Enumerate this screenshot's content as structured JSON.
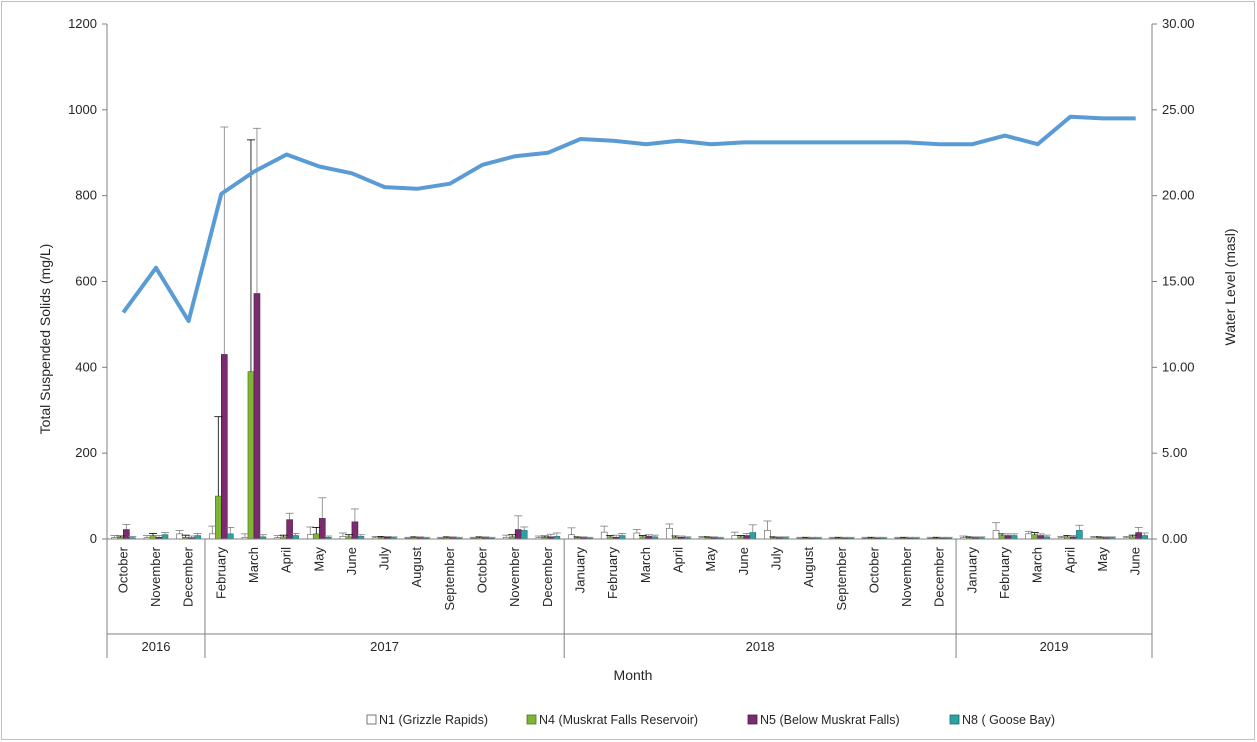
{
  "chart_data": {
    "type": "bar",
    "xlabel": "Month",
    "ylabel": "Total Suspended Solids (mg/L)",
    "y2label": "Water Level (masl)",
    "ylim": [
      0,
      1200
    ],
    "y2lim": [
      0,
      30
    ],
    "yticks": [
      "0",
      "200",
      "400",
      "600",
      "800",
      "1000",
      "1200"
    ],
    "y2ticks": [
      "0.00",
      "5.00",
      "10.00",
      "15.00",
      "20.00",
      "25.00",
      "30.00"
    ],
    "categories": [
      "October",
      "November",
      "December",
      "February",
      "March",
      "April",
      "May",
      "June",
      "July",
      "August",
      "September",
      "October",
      "November",
      "December",
      "January",
      "February",
      "March",
      "April",
      "May",
      "June",
      "July",
      "August",
      "September",
      "October",
      "November",
      "December",
      "January",
      "February",
      "March",
      "April",
      "May",
      "June"
    ],
    "years": [
      {
        "label": "2016",
        "start": 0,
        "end": 2
      },
      {
        "label": "2017",
        "start": 3,
        "end": 13
      },
      {
        "label": "2018",
        "start": 14,
        "end": 25
      },
      {
        "label": "2019",
        "start": 26,
        "end": 31
      }
    ],
    "series": [
      {
        "name": "N1 (Grizzle Rapids)",
        "color": "#ffffff",
        "stroke": "#595959",
        "values": [
          3,
          3,
          12,
          12,
          4,
          3,
          10,
          6,
          3,
          2,
          2,
          2,
          4,
          3,
          10,
          16,
          14,
          25,
          3,
          8,
          20,
          2,
          2,
          2,
          2,
          2,
          3,
          20,
          12,
          3,
          3,
          3
        ],
        "errors": [
          5,
          5,
          8,
          18,
          8,
          5,
          18,
          8,
          3,
          2,
          2,
          2,
          5,
          4,
          16,
          14,
          8,
          10,
          3,
          8,
          22,
          2,
          2,
          2,
          2,
          2,
          4,
          18,
          6,
          3,
          3,
          3
        ]
      },
      {
        "name": "N4 (Muskrat Falls Reservoir)",
        "color": "#7fb535",
        "stroke": "#4d7020",
        "values": [
          4,
          8,
          4,
          100,
          390,
          5,
          12,
          5,
          4,
          3,
          3,
          3,
          5,
          4,
          3,
          5,
          5,
          4,
          3,
          5,
          3,
          2,
          2,
          2,
          2,
          2,
          3,
          8,
          10,
          5,
          3,
          5
        ],
        "errors": [
          3,
          5,
          5,
          185,
          540,
          4,
          15,
          5,
          2,
          2,
          2,
          2,
          5,
          3,
          2,
          3,
          3,
          3,
          2,
          3,
          2,
          2,
          2,
          2,
          2,
          2,
          2,
          4,
          5,
          3,
          2,
          4
        ],
        "error_stroke": "#000000"
      },
      {
        "name": "N5 (Below Muskrat Falls)",
        "color": "#7b2c6e",
        "stroke": "#4a1a42",
        "values": [
          22,
          4,
          3,
          430,
          572,
          45,
          48,
          40,
          4,
          3,
          3,
          3,
          22,
          5,
          3,
          4,
          6,
          4,
          3,
          8,
          3,
          2,
          2,
          2,
          2,
          2,
          3,
          8,
          8,
          5,
          3,
          15
        ],
        "errors": [
          12,
          4,
          4,
          530,
          385,
          15,
          48,
          30,
          2,
          2,
          2,
          2,
          32,
          6,
          2,
          5,
          4,
          3,
          2,
          5,
          2,
          2,
          2,
          2,
          2,
          2,
          2,
          4,
          4,
          3,
          2,
          12
        ]
      },
      {
        "name": "N8 ( Goose Bay)",
        "color": "#2aa3a3",
        "stroke": "#1a6b6b",
        "values": [
          3,
          10,
          8,
          12,
          5,
          8,
          4,
          6,
          3,
          2,
          2,
          2,
          20,
          6,
          2,
          8,
          5,
          3,
          2,
          15,
          3,
          2,
          2,
          2,
          2,
          2,
          3,
          8,
          5,
          20,
          3,
          8
        ],
        "errors": [
          3,
          5,
          5,
          15,
          5,
          5,
          3,
          4,
          2,
          2,
          2,
          2,
          8,
          8,
          2,
          5,
          4,
          2,
          2,
          18,
          2,
          2,
          2,
          2,
          2,
          2,
          2,
          4,
          4,
          12,
          2,
          6
        ]
      }
    ],
    "line_series": {
      "name": "Water Level",
      "color": "#5b9bd5",
      "values": [
        13.2,
        15.8,
        12.7,
        20.1,
        21.4,
        22.4,
        21.7,
        21.3,
        20.5,
        20.4,
        20.7,
        21.8,
        22.3,
        22.5,
        23.3,
        23.2,
        23.0,
        23.2,
        23.0,
        23.1,
        23.1,
        23.1,
        23.1,
        23.1,
        23.1,
        23.0,
        23.0,
        23.5,
        23.0,
        24.6,
        24.5,
        24.5
      ]
    },
    "legend_position": "bottom",
    "grid": false
  }
}
